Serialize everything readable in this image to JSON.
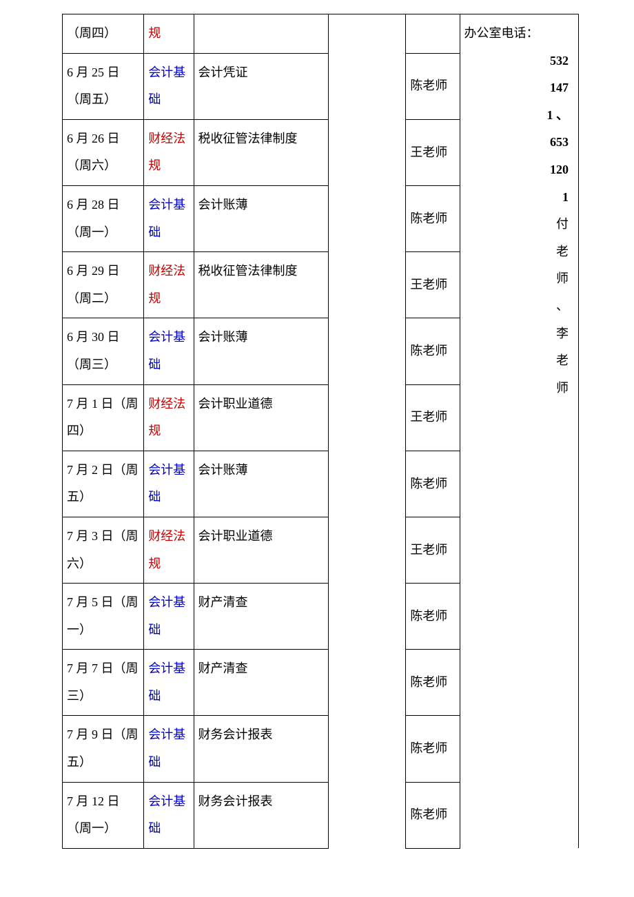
{
  "colors": {
    "subject_blue": "#0000cc",
    "subject_red": "#cc0000",
    "border": "#000000",
    "text": "#000000",
    "background": "#ffffff"
  },
  "rows": [
    {
      "date": "（周四）",
      "subject": "规",
      "subject_color": "red",
      "content": "",
      "teacher": "",
      "first_row": true
    },
    {
      "date": "6 月 25 日（周五）",
      "subject": "会计基础",
      "subject_color": "blue",
      "content": "会计凭证",
      "teacher": "陈老师"
    },
    {
      "date": "6 月 26 日（周六）",
      "subject": "财经法规",
      "subject_color": "red",
      "content": "税收征管法律制度",
      "teacher": "王老师"
    },
    {
      "date": "6 月 28 日（周一）",
      "subject": "会计基础",
      "subject_color": "blue",
      "content": "会计账薄",
      "teacher": "陈老师"
    },
    {
      "date": "6 月 29 日（周二）",
      "subject": "财经法规",
      "subject_color": "red",
      "content": "税收征管法律制度",
      "teacher": "王老师"
    },
    {
      "date": "6 月 30 日（周三）",
      "subject": "会计基础",
      "subject_color": "blue",
      "content": "会计账薄",
      "teacher": "陈老师"
    },
    {
      "date": "7 月 1 日（周四）",
      "subject": "财经法规",
      "subject_color": "red",
      "content": "会计职业道德",
      "teacher": "王老师"
    },
    {
      "date": "7 月 2 日（周五）",
      "subject": "会计基础",
      "subject_color": "blue",
      "content": "会计账薄",
      "teacher": "陈老师"
    },
    {
      "date": "7 月 3 日（周六）",
      "subject": "财经法规",
      "subject_color": "red",
      "content": "会计职业道德",
      "teacher": "王老师"
    },
    {
      "date": "7 月 5 日（周一）",
      "subject": "会计基础",
      "subject_color": "blue",
      "content": "财产清查",
      "teacher": "陈老师"
    },
    {
      "date": "7 月 7 日（周三）",
      "subject": "会计基础",
      "subject_color": "blue",
      "content": "财产清查",
      "teacher": "陈老师"
    },
    {
      "date": "7 月 9 日（周五）",
      "subject": "会计基础",
      "subject_color": "blue",
      "content": "财务会计报表",
      "teacher": "陈老师"
    },
    {
      "date": "7 月 12 日（周一）",
      "subject": "会计基础",
      "subject_color": "blue",
      "content": "财务会计报表",
      "teacher": "陈老师"
    }
  ],
  "notes": {
    "label": "办公室电话：",
    "phone1": "5321471",
    "sep": "、",
    "phone2": "6531201",
    "contact": "付老师、李老师"
  }
}
